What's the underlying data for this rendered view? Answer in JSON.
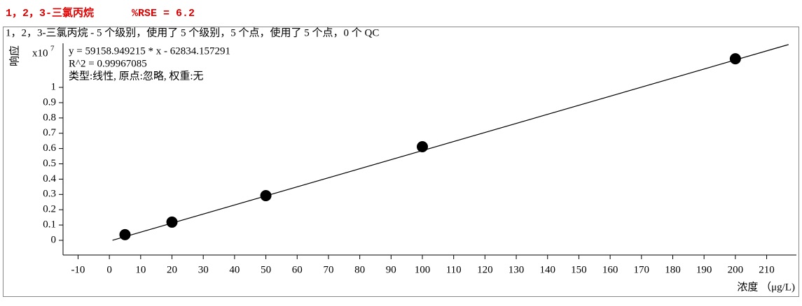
{
  "chart_data": {
    "type": "scatter",
    "title": "1，2，3-三氯丙烷",
    "title_stat": "%RSE = 6.2",
    "subtitle": "1，2，3-三氯丙烷 - 5 个级别，使用了 5 个级别，5 个点，使用了 5 个点，0 个 QC",
    "annotations": [
      "y = 59158.949215 * x  - 62834.157291",
      "R^2 = 0.99967085",
      "类型:线性, 原点:忽略, 权重:无"
    ],
    "x_label": "浓度 （μg/L)",
    "y_label": "响应",
    "y_scale_label": {
      "base": "x10",
      "exponent": "7"
    },
    "x": [
      5,
      20,
      50,
      100,
      200
    ],
    "values": [
      0.037,
      0.119,
      0.292,
      0.612,
      1.187
    ],
    "color": "#000000",
    "fit_line": {
      "x": [
        1,
        217
      ],
      "values": [
        0,
        1.28
      ],
      "color": "#000000"
    },
    "xlim": [
      -14.8,
      219.5
    ],
    "ylim": [
      -0.096,
      1.288
    ],
    "xticks": [
      -10,
      0,
      10,
      20,
      30,
      40,
      50,
      60,
      70,
      80,
      90,
      100,
      110,
      120,
      130,
      140,
      150,
      160,
      170,
      180,
      190,
      200,
      210
    ],
    "yticks": [
      0,
      0.1,
      0.2,
      0.3,
      0.4,
      0.5,
      0.6,
      0.7,
      0.8,
      0.9,
      1
    ]
  }
}
